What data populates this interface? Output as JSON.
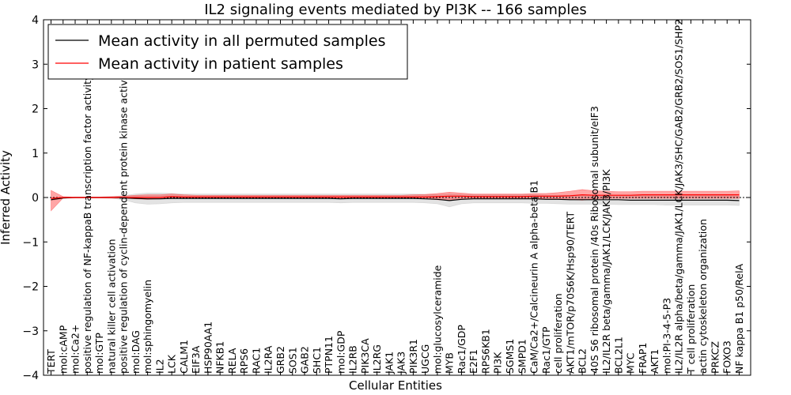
{
  "chart_data": {
    "type": "line",
    "title": "IL2 signaling events mediated by PI3K -- 166 samples",
    "xlabel": "Cellular Entities",
    "ylabel": "Inferred Activity",
    "ylim": [
      -4,
      4
    ],
    "yticks": [
      -4,
      -3,
      -2,
      -1,
      0,
      1,
      2,
      3,
      4
    ],
    "ytick_labels": [
      "−4",
      "−3",
      "−2",
      "−1",
      "0",
      "1",
      "2",
      "3",
      "4"
    ],
    "legend_position": "top-left",
    "categories": [
      "TERT",
      "mol:cAMP",
      "mol:Ca2+",
      "positive regulation of NF-kappaB transcription factor activity",
      "mol:GTP",
      "natural killer cell activation",
      "positive regulation of cyclin-dependent protein kinase activity",
      "mol:DAG",
      "mol:sphingomyelin",
      "IL2",
      "LCK",
      "CALM1",
      "EIF3A",
      "HSP90AA1",
      "NFKB1",
      "RELA",
      "RPS6",
      "RAC1",
      "IL2RA",
      "GRB2",
      "SOS1",
      "GAB2",
      "SHC1",
      "PTPN11",
      "mol:GDP",
      "IL2RB",
      "PIK3CA",
      "IL2RG",
      "JAK1",
      "JAK3",
      "PIK3R1",
      "UGCG",
      "mol:glucosylceramide",
      "MYB",
      "Rac1/GDP",
      "E2F1",
      "RPS6KB1",
      "PI3K",
      "SGMS1",
      "SMPD1",
      "CaM/Ca2+/Calcineurin A alpha-beta B1",
      "Rac1/GTP",
      "cell proliferation",
      "AKT1/mTOR/p70S6K/Hsp90/TERT",
      "BCL2",
      "40S S6 ribosomal protein /40s Ribosomal subunit/eIF3",
      "IL2/IL2R beta/gamma/JAK1/LCK/JAK3/PI3K",
      "BCL2L1",
      "MYC",
      "FRAP1",
      "AKT1",
      "mol:PI-3-4-5-P3",
      "IL2/IL2R alpha/beta/gamma/JAK1/LCK/JAK3/SHC/GAB2/GRB2/SOS1/SHP2",
      "T cell proliferation",
      "actin cytoskeleton organization",
      "PRKCZ",
      "FOXO3",
      "NF kappa B1 p50/RelA"
    ],
    "series": [
      {
        "name": "Mean activity in all permuted samples",
        "color": "#000000",
        "band_color": "#cccccc",
        "values": [
          -0.05,
          -0.01,
          0.0,
          0.0,
          0.0,
          0.0,
          -0.01,
          -0.02,
          -0.03,
          -0.03,
          -0.02,
          -0.02,
          -0.02,
          -0.02,
          -0.02,
          -0.02,
          -0.02,
          -0.02,
          -0.02,
          -0.02,
          -0.02,
          -0.02,
          -0.02,
          -0.02,
          -0.03,
          -0.02,
          -0.02,
          -0.02,
          -0.02,
          -0.02,
          -0.02,
          -0.03,
          -0.04,
          -0.07,
          -0.04,
          -0.03,
          -0.03,
          -0.03,
          -0.03,
          -0.03,
          -0.03,
          -0.04,
          -0.04,
          -0.05,
          -0.05,
          -0.05,
          -0.05,
          -0.05,
          -0.06,
          -0.06,
          -0.06,
          -0.06,
          -0.06,
          -0.06,
          -0.06,
          -0.06,
          -0.06,
          -0.07
        ],
        "lower": [
          -0.07,
          -0.02,
          -0.01,
          -0.01,
          -0.01,
          -0.02,
          -0.05,
          -0.12,
          -0.15,
          -0.14,
          -0.12,
          -0.11,
          -0.11,
          -0.11,
          -0.11,
          -0.11,
          -0.11,
          -0.11,
          -0.11,
          -0.11,
          -0.11,
          -0.11,
          -0.11,
          -0.11,
          -0.12,
          -0.11,
          -0.11,
          -0.11,
          -0.11,
          -0.11,
          -0.11,
          -0.12,
          -0.14,
          -0.21,
          -0.14,
          -0.12,
          -0.12,
          -0.12,
          -0.12,
          -0.12,
          -0.13,
          -0.13,
          -0.14,
          -0.15,
          -0.15,
          -0.15,
          -0.15,
          -0.16,
          -0.16,
          -0.16,
          -0.16,
          -0.17,
          -0.17,
          -0.17,
          -0.17,
          -0.17,
          -0.17,
          -0.18
        ],
        "upper": [
          -0.03,
          0.0,
          0.01,
          0.01,
          0.01,
          0.02,
          0.04,
          0.08,
          0.1,
          0.1,
          0.09,
          0.08,
          0.08,
          0.08,
          0.08,
          0.08,
          0.08,
          0.08,
          0.08,
          0.08,
          0.08,
          0.08,
          0.08,
          0.08,
          0.08,
          0.08,
          0.08,
          0.08,
          0.08,
          0.08,
          0.08,
          0.07,
          0.06,
          0.08,
          0.06,
          0.06,
          0.06,
          0.06,
          0.06,
          0.06,
          0.06,
          0.05,
          0.05,
          0.05,
          0.05,
          0.05,
          0.05,
          0.05,
          0.05,
          0.04,
          0.04,
          0.04,
          0.04,
          0.04,
          0.04,
          0.04,
          0.04,
          0.03
        ]
      },
      {
        "name": "Mean activity in patient samples",
        "color": "#ff0000",
        "band_color": "#ff0000",
        "values": [
          -0.02,
          0.0,
          0.0,
          0.0,
          0.0,
          0.0,
          0.0,
          0.0,
          0.0,
          0.0,
          0.02,
          0.01,
          0.01,
          0.01,
          0.01,
          0.01,
          0.01,
          0.01,
          0.01,
          0.01,
          0.01,
          0.01,
          0.01,
          0.01,
          0.01,
          0.01,
          0.01,
          0.01,
          0.01,
          0.01,
          0.01,
          0.01,
          0.02,
          0.03,
          0.03,
          0.02,
          0.02,
          0.02,
          0.02,
          0.02,
          0.03,
          0.03,
          0.03,
          0.04,
          0.06,
          0.05,
          0.05,
          0.05,
          0.05,
          0.06,
          0.06,
          0.06,
          0.06,
          0.06,
          0.06,
          0.06,
          0.06,
          0.06
        ],
        "lower": [
          -0.3,
          -0.01,
          -0.01,
          -0.01,
          -0.01,
          -0.01,
          -0.01,
          -0.03,
          -0.04,
          -0.03,
          -0.02,
          -0.02,
          -0.02,
          -0.02,
          -0.02,
          -0.02,
          -0.02,
          -0.02,
          -0.02,
          -0.02,
          -0.02,
          -0.02,
          -0.02,
          -0.02,
          -0.02,
          -0.02,
          -0.02,
          -0.02,
          -0.02,
          -0.02,
          -0.02,
          -0.03,
          -0.05,
          -0.06,
          -0.04,
          -0.03,
          -0.03,
          -0.03,
          -0.03,
          -0.03,
          -0.03,
          -0.02,
          -0.03,
          -0.04,
          -0.06,
          -0.03,
          -0.02,
          -0.02,
          -0.02,
          -0.02,
          -0.02,
          -0.02,
          -0.02,
          -0.02,
          -0.02,
          -0.02,
          -0.02,
          -0.02
        ],
        "upper": [
          0.16,
          0.02,
          0.01,
          0.01,
          0.01,
          0.02,
          0.03,
          0.05,
          0.06,
          0.06,
          0.08,
          0.06,
          0.05,
          0.05,
          0.05,
          0.05,
          0.05,
          0.05,
          0.05,
          0.05,
          0.05,
          0.05,
          0.05,
          0.05,
          0.05,
          0.05,
          0.05,
          0.05,
          0.05,
          0.05,
          0.06,
          0.07,
          0.09,
          0.12,
          0.1,
          0.08,
          0.08,
          0.08,
          0.08,
          0.08,
          0.09,
          0.09,
          0.11,
          0.14,
          0.18,
          0.15,
          0.14,
          0.13,
          0.13,
          0.14,
          0.14,
          0.14,
          0.14,
          0.14,
          0.14,
          0.14,
          0.14,
          0.15
        ]
      }
    ]
  }
}
